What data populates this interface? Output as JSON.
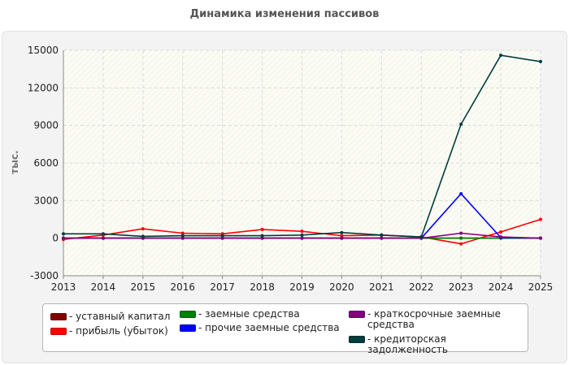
{
  "chart_data": {
    "type": "line",
    "title": "Динамика изменения пассивов",
    "ylabel": "тыс.",
    "xlabel": "",
    "x": [
      "2013",
      "2014",
      "2015",
      "2016",
      "2017",
      "2018",
      "2019",
      "2020",
      "2021",
      "2022",
      "2023",
      "2024",
      "2025"
    ],
    "ylim": [
      -3000,
      15000
    ],
    "yticks": [
      -3000,
      0,
      3000,
      6000,
      9000,
      12000,
      15000
    ],
    "grid": true,
    "legend_position": "bottom",
    "series": [
      {
        "name": "уставный капитал",
        "color": "#800000",
        "values": [
          10,
          10,
          10,
          10,
          10,
          10,
          10,
          10,
          10,
          10,
          10,
          10,
          10
        ]
      },
      {
        "name": "прибыль (убыток)",
        "color": "#ff0000",
        "values": [
          -100,
          250,
          750,
          400,
          350,
          700,
          550,
          200,
          250,
          100,
          -450,
          500,
          1500
        ]
      },
      {
        "name": "заемные средства",
        "color": "#008000",
        "values": [
          0,
          0,
          0,
          0,
          0,
          0,
          0,
          0,
          0,
          0,
          0,
          0,
          0
        ]
      },
      {
        "name": "прочие заемные средства",
        "color": "#0000ff",
        "values": [
          0,
          0,
          0,
          0,
          0,
          0,
          0,
          0,
          0,
          0,
          3550,
          50,
          0
        ]
      },
      {
        "name": "краткосрочные заемные средства",
        "color": "#800080",
        "values": [
          0,
          0,
          0,
          0,
          0,
          0,
          0,
          0,
          0,
          0,
          400,
          100,
          0
        ]
      },
      {
        "name": "кредиторская задолженность",
        "color": "#003d3d",
        "values": [
          350,
          350,
          150,
          200,
          200,
          200,
          250,
          450,
          250,
          100,
          9100,
          14600,
          14100
        ]
      }
    ]
  }
}
